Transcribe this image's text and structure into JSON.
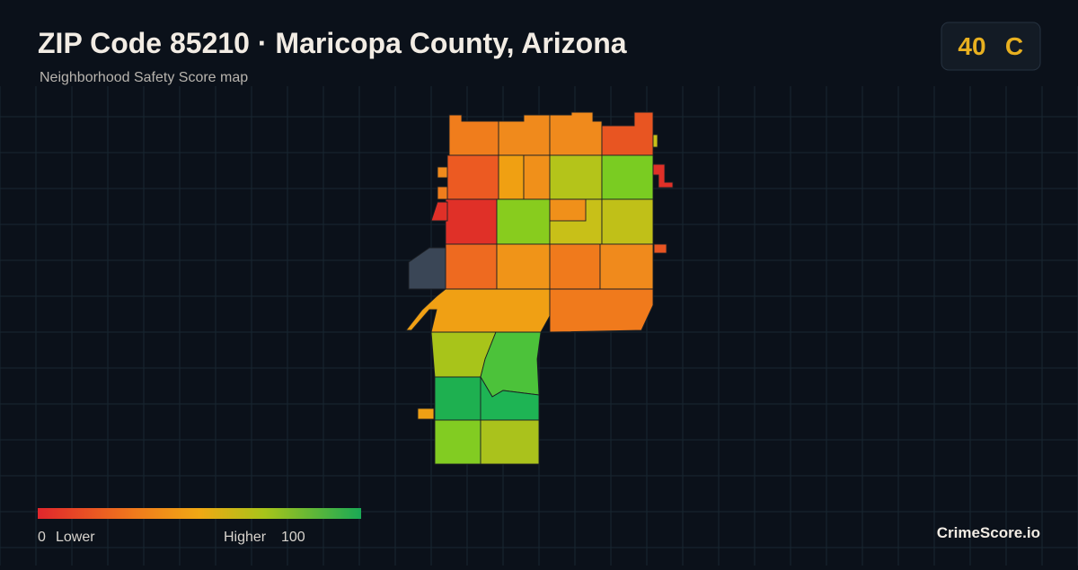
{
  "header": {
    "title": "ZIP Code 85210 · Maricopa County, Arizona",
    "subtitle": "Neighborhood Safety Score map"
  },
  "score": {
    "value": 40,
    "grade": "C"
  },
  "legend": {
    "min": 0,
    "min_label": "Lower",
    "max_label": "Higher",
    "max": 100
  },
  "brand": "CrimeScore.io"
}
